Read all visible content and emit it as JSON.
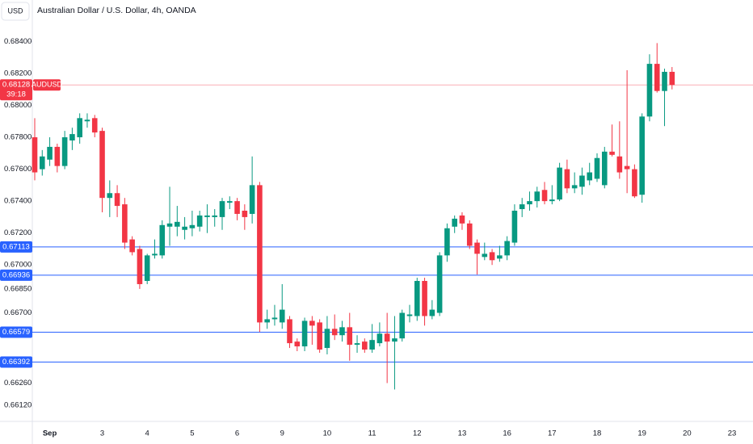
{
  "chart_data": {
    "type": "candlestick",
    "title": "Australian Dollar / U.S. Dollar, 4h, OANDA",
    "currency": "USD",
    "up_color": "#089981",
    "down_color": "#f23645",
    "categories": [
      null,
      null,
      "Sep",
      null,
      null,
      null,
      null,
      null,
      null,
      "3",
      null,
      null,
      null,
      null,
      null,
      "4",
      null,
      null,
      null,
      null,
      null,
      "5",
      null,
      null,
      null,
      null,
      null,
      "6",
      null,
      null,
      null,
      null,
      null,
      "9",
      null,
      null,
      null,
      null,
      null,
      "10",
      null,
      null,
      null,
      null,
      null,
      "11",
      null,
      null,
      null,
      null,
      null,
      "12",
      null,
      null,
      null,
      null,
      null,
      "13",
      null,
      null,
      null,
      null,
      null,
      "16",
      null,
      null,
      null,
      null,
      null,
      "17",
      null,
      null,
      null,
      null,
      null,
      "18",
      null,
      null,
      null,
      null,
      null,
      "19",
      null,
      null,
      null,
      null,
      null,
      "20",
      null,
      null,
      null,
      null,
      null,
      "23",
      null,
      null
    ],
    "open": [
      0.678,
      0.676,
      0.6766,
      0.6774,
      0.6762,
      0.6778,
      0.678,
      0.679,
      0.6792,
      0.6784,
      0.6742,
      0.6745,
      0.6738,
      0.6716,
      0.671,
      0.669,
      0.6706,
      0.6706,
      0.6724,
      0.6724,
      0.6722,
      0.6723,
      0.6724,
      0.673,
      0.673,
      0.673,
      0.6739,
      0.674,
      0.6734,
      0.6732,
      0.675,
      0.6664,
      0.6666,
      0.6664,
      0.6666,
      0.6652,
      0.6649,
      0.6665,
      0.6664,
      0.6648,
      0.666,
      0.6656,
      0.6661,
      0.665,
      0.6652,
      0.6647,
      0.6651,
      0.6657,
      0.6652,
      0.6654,
      0.6668,
      0.6668,
      0.669,
      0.6668,
      0.667,
      0.6706,
      0.6724,
      0.6731,
      0.6726,
      0.6714,
      0.6705,
      0.6708,
      0.6704,
      0.6706,
      0.6714,
      0.6735,
      0.6738,
      0.674,
      0.6747,
      0.674,
      0.6741,
      0.676,
      0.6748,
      0.6749,
      0.6753,
      0.6754,
      0.675,
      0.6771,
      0.6768,
      0.6762,
      0.676,
      0.6744,
      0.6793,
      0.6826,
      0.6809,
      0.6821,
      null,
      null,
      null,
      null,
      null,
      null,
      null,
      null,
      null,
      null
    ],
    "high": [
      0.6792,
      0.6772,
      0.678,
      0.6776,
      0.6784,
      0.6786,
      0.6795,
      0.6795,
      0.6794,
      0.6786,
      0.6753,
      0.675,
      0.6742,
      0.6718,
      0.6712,
      0.6707,
      0.6716,
      0.6728,
      0.6749,
      0.6737,
      0.673,
      0.6734,
      0.6734,
      0.6738,
      0.6735,
      0.6742,
      0.6743,
      0.6742,
      0.6738,
      0.6768,
      0.6752,
      0.6672,
      0.6675,
      0.6688,
      0.6668,
      0.6654,
      0.6667,
      0.6668,
      0.6666,
      0.6668,
      0.6669,
      0.6665,
      0.667,
      0.6656,
      0.6654,
      0.6663,
      0.6664,
      0.667,
      0.6668,
      0.6672,
      0.6675,
      0.6692,
      0.6692,
      0.6678,
      0.6708,
      0.6726,
      0.6731,
      0.6733,
      0.6728,
      0.6716,
      0.6714,
      0.671,
      0.6712,
      0.6718,
      0.6738,
      0.6742,
      0.6746,
      0.6749,
      0.6752,
      0.675,
      0.6764,
      0.6766,
      0.6758,
      0.6761,
      0.6764,
      0.677,
      0.6774,
      0.6788,
      0.679,
      0.6822,
      0.6763,
      0.6795,
      0.6832,
      0.6839,
      0.6823,
      0.6824,
      null,
      null,
      null,
      null,
      null,
      null,
      null,
      null,
      null,
      null
    ],
    "low": [
      0.6753,
      0.6756,
      0.6762,
      0.6758,
      0.676,
      0.6772,
      0.6776,
      0.6786,
      0.678,
      0.6733,
      0.673,
      0.673,
      0.671,
      0.6706,
      0.6685,
      0.6688,
      0.6704,
      0.6704,
      0.6712,
      0.6718,
      0.6716,
      0.6718,
      0.6721,
      0.672,
      0.6724,
      0.6722,
      0.6735,
      0.6728,
      0.6722,
      0.6726,
      0.6658,
      0.666,
      0.6662,
      0.666,
      0.6648,
      0.6646,
      0.6646,
      0.665,
      0.6645,
      0.6644,
      0.6653,
      0.6652,
      0.664,
      0.6645,
      0.6645,
      0.6645,
      0.6649,
      0.6626,
      0.6622,
      0.6652,
      0.6664,
      0.6665,
      0.6662,
      0.6666,
      0.6668,
      0.6702,
      0.672,
      0.6722,
      0.671,
      0.6694,
      0.6703,
      0.67,
      0.6702,
      0.6703,
      0.6712,
      0.673,
      0.6734,
      0.6736,
      0.6738,
      0.6738,
      0.674,
      0.6745,
      0.6745,
      0.6744,
      0.675,
      0.6752,
      0.6748,
      0.6768,
      0.6754,
      0.6745,
      0.6742,
      0.6739,
      0.679,
      0.6808,
      0.6787,
      0.681,
      null,
      null,
      null,
      null,
      null,
      null,
      null,
      null,
      null,
      null
    ],
    "close": [
      0.6758,
      0.6768,
      0.6774,
      0.6762,
      0.678,
      0.6782,
      0.6792,
      0.6791,
      0.6783,
      0.6742,
      0.6745,
      0.6737,
      0.6714,
      0.6708,
      0.6688,
      0.6706,
      0.6707,
      0.6725,
      0.6726,
      0.6727,
      0.6724,
      0.6725,
      0.6731,
      0.6731,
      0.6731,
      0.674,
      0.674,
      0.6732,
      0.673,
      0.675,
      0.6664,
      0.6666,
      0.6667,
      0.6672,
      0.6651,
      0.6649,
      0.6665,
      0.6662,
      0.6647,
      0.666,
      0.6656,
      0.6661,
      0.665,
      0.6651,
      0.6647,
      0.6653,
      0.6657,
      0.6652,
      0.6654,
      0.667,
      0.6669,
      0.669,
      0.6668,
      0.6672,
      0.6706,
      0.6723,
      0.6729,
      0.6726,
      0.6712,
      0.6707,
      0.6707,
      0.6703,
      0.6706,
      0.6715,
      0.6734,
      0.6738,
      0.674,
      0.6746,
      0.674,
      0.6741,
      0.6761,
      0.6748,
      0.675,
      0.6756,
      0.6758,
      0.6767,
      0.6771,
      0.6769,
      0.6758,
      0.676,
      0.6743,
      0.6793,
      0.6826,
      0.6809,
      0.6821,
      0.68128,
      null,
      null,
      null,
      null,
      null,
      null,
      null,
      null,
      null,
      null
    ],
    "ylim": [
      0.6602,
      0.6866
    ],
    "yticks": [
      {
        "value": 0.684,
        "label": "0.68400"
      },
      {
        "value": 0.682,
        "label": "0.68200"
      },
      {
        "value": 0.68,
        "label": "0.68000"
      },
      {
        "value": 0.678,
        "label": "0.67800"
      },
      {
        "value": 0.676,
        "label": "0.67600"
      },
      {
        "value": 0.674,
        "label": "0.67400"
      },
      {
        "value": 0.672,
        "label": "0.67200"
      },
      {
        "value": 0.67,
        "label": "0.67000"
      },
      {
        "value": 0.6685,
        "label": "0.66850"
      },
      {
        "value": 0.667,
        "label": "0.66700"
      },
      {
        "value": 0.6626,
        "label": "0.66260"
      },
      {
        "value": 0.6612,
        "label": "0.66120"
      }
    ],
    "grid": false,
    "levels": [
      0.67113,
      0.66936,
      0.66579,
      0.66392
    ],
    "level_color": "#2962ff",
    "last_price": {
      "symbol": "AUDUSD",
      "value": 0.68128,
      "countdown": "39:18",
      "color": "#f23645"
    }
  }
}
